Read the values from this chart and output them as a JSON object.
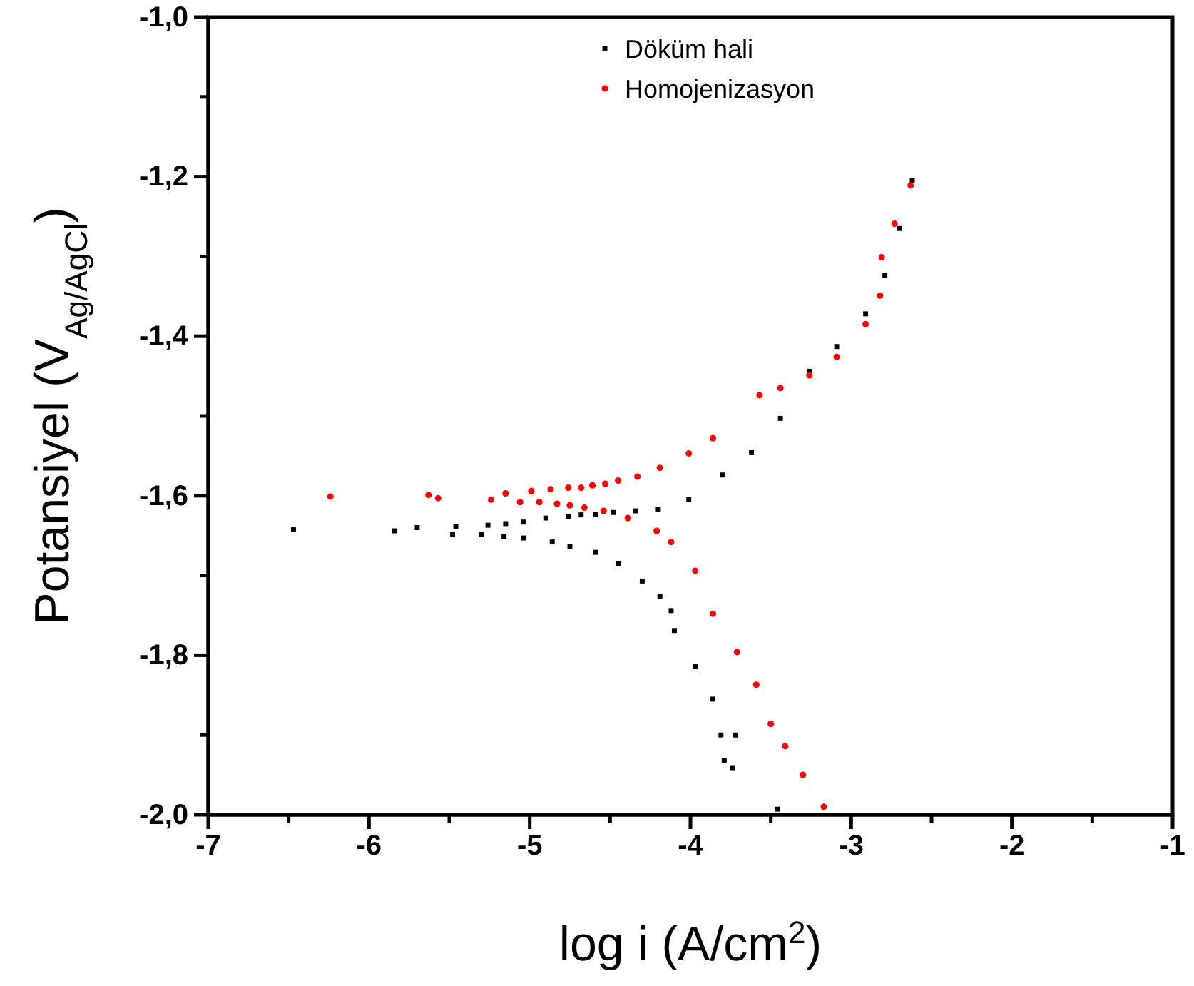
{
  "chart_data": {
    "type": "scatter",
    "xlabel": "log i (A/cm$^{2}$)",
    "ylabel": "Potansiyel (V$_{Ag/AgCl}$)",
    "xlim": [
      -7,
      -1
    ],
    "ylim": [
      -2.0,
      -1.0
    ],
    "xticks": [
      -7,
      {
        "value": -6.5,
        "label": null
      },
      -6,
      {
        "value": -5.5,
        "label": null
      },
      -5,
      {
        "value": -4.5,
        "label": null
      },
      -4,
      {
        "value": -3.5,
        "label": null
      },
      -3,
      {
        "value": -2.5,
        "label": null
      },
      -2,
      {
        "value": -1.5,
        "label": null
      },
      -1
    ],
    "yticks": [
      {
        "value": -2.0,
        "label": "-2,0"
      },
      {
        "value": -1.9,
        "label": null
      },
      {
        "value": -1.8,
        "label": "-1,8"
      },
      {
        "value": -1.7,
        "label": null
      },
      {
        "value": -1.6,
        "label": "-1,6"
      },
      {
        "value": -1.5,
        "label": null
      },
      {
        "value": -1.4,
        "label": "-1,4"
      },
      {
        "value": -1.3,
        "label": null
      },
      {
        "value": -1.2,
        "label": "-1,2"
      },
      {
        "value": -1.1,
        "label": null
      },
      {
        "value": -1.0,
        "label": "-1,0"
      }
    ],
    "legend": "top",
    "series": [
      {
        "name": "Döküm hali",
        "color": "#000000",
        "marker": "square",
        "x": [
          -3.46,
          -3.74,
          -3.79,
          -3.81,
          -3.72,
          -3.86,
          -3.97,
          -4.1,
          -4.12,
          -4.19,
          -4.3,
          -4.45,
          -4.59,
          -4.75,
          -4.86,
          -5.04,
          -5.16,
          -5.3,
          -5.48,
          -6.47,
          -5.84,
          -5.7,
          -5.46,
          -5.26,
          -5.15,
          -5.04,
          -4.9,
          -4.76,
          -4.68,
          -4.59,
          -4.48,
          -4.34,
          -4.2,
          -4.01,
          -3.8,
          -3.62,
          -3.44,
          -3.26,
          -3.09,
          -2.91,
          -2.79,
          -2.7,
          -2.62
        ],
        "values": [
          -1.993,
          -1.941,
          -1.932,
          -1.9,
          -1.9,
          -1.855,
          -1.814,
          -1.769,
          -1.744,
          -1.726,
          -1.707,
          -1.685,
          -1.671,
          -1.664,
          -1.658,
          -1.653,
          -1.651,
          -1.649,
          -1.648,
          -1.642,
          -1.644,
          -1.64,
          -1.639,
          -1.637,
          -1.635,
          -1.633,
          -1.628,
          -1.626,
          -1.624,
          -1.623,
          -1.621,
          -1.619,
          -1.617,
          -1.605,
          -1.574,
          -1.546,
          -1.503,
          -1.444,
          -1.413,
          -1.372,
          -1.324,
          -1.265,
          -1.205
        ]
      },
      {
        "name": "Homojenizasyon",
        "color": "#ff0000",
        "marker": "circle",
        "x": [
          -3.17,
          -3.3,
          -3.41,
          -3.5,
          -3.59,
          -3.71,
          -3.86,
          -3.97,
          -4.12,
          -4.21,
          -4.39,
          -4.54,
          -4.66,
          -4.75,
          -4.83,
          -4.94,
          -5.06,
          -5.24,
          -6.24,
          -5.63,
          -5.57,
          -5.15,
          -4.99,
          -4.87,
          -4.76,
          -4.68,
          -4.61,
          -4.53,
          -4.45,
          -4.33,
          -4.19,
          -4.01,
          -3.86,
          -3.57,
          -3.44,
          -3.26,
          -3.09,
          -2.91,
          -2.82,
          -2.81,
          -2.73,
          -2.63
        ],
        "values": [
          -1.99,
          -1.95,
          -1.914,
          -1.886,
          -1.837,
          -1.796,
          -1.748,
          -1.694,
          -1.658,
          -1.644,
          -1.628,
          -1.619,
          -1.615,
          -1.612,
          -1.61,
          -1.608,
          -1.608,
          -1.605,
          -1.601,
          -1.599,
          -1.603,
          -1.597,
          -1.594,
          -1.592,
          -1.59,
          -1.59,
          -1.587,
          -1.585,
          -1.581,
          -1.576,
          -1.565,
          -1.547,
          -1.528,
          -1.474,
          -1.465,
          -1.449,
          -1.426,
          -1.385,
          -1.349,
          -1.301,
          -1.259,
          -1.211
        ]
      }
    ]
  }
}
